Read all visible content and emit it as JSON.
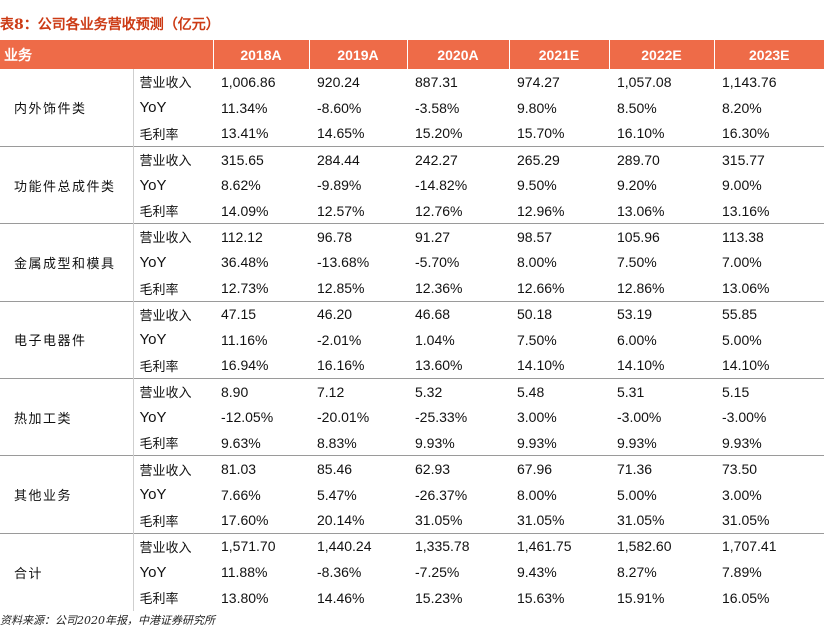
{
  "title": "表8：公司各业务营收预测（亿元）",
  "header": {
    "segment_label": "业务",
    "years": [
      "2018A",
      "2019A",
      "2020A",
      "2021E",
      "2022E",
      "2023E"
    ]
  },
  "groups": [
    {
      "name": "内外饰件类",
      "rows": [
        {
          "metric": "营业收入",
          "values": [
            "1,006.86",
            "920.24",
            "887.31",
            "974.27",
            "1,057.08",
            "1,143.76"
          ]
        },
        {
          "metric": "YoY",
          "values": [
            "11.34%",
            "-8.60%",
            "-3.58%",
            "9.80%",
            "8.50%",
            "8.20%"
          ]
        },
        {
          "metric": "毛利率",
          "values": [
            "13.41%",
            "14.65%",
            "15.20%",
            "15.70%",
            "16.10%",
            "16.30%"
          ]
        }
      ]
    },
    {
      "name": "功能件总成件类",
      "rows": [
        {
          "metric": "营业收入",
          "values": [
            "315.65",
            "284.44",
            "242.27",
            "265.29",
            "289.70",
            "315.77"
          ]
        },
        {
          "metric": "YoY",
          "values": [
            "8.62%",
            "-9.89%",
            "-14.82%",
            "9.50%",
            "9.20%",
            "9.00%"
          ]
        },
        {
          "metric": "毛利率",
          "values": [
            "14.09%",
            "12.57%",
            "12.76%",
            "12.96%",
            "13.06%",
            "13.16%"
          ]
        }
      ]
    },
    {
      "name": "金属成型和模具",
      "rows": [
        {
          "metric": "营业收入",
          "values": [
            "112.12",
            "96.78",
            "91.27",
            "98.57",
            "105.96",
            "113.38"
          ]
        },
        {
          "metric": "YoY",
          "values": [
            "36.48%",
            "-13.68%",
            "-5.70%",
            "8.00%",
            "7.50%",
            "7.00%"
          ]
        },
        {
          "metric": "毛利率",
          "values": [
            "12.73%",
            "12.85%",
            "12.36%",
            "12.66%",
            "12.86%",
            "13.06%"
          ]
        }
      ]
    },
    {
      "name": "电子电器件",
      "rows": [
        {
          "metric": "营业收入",
          "values": [
            "47.15",
            "46.20",
            "46.68",
            "50.18",
            "53.19",
            "55.85"
          ]
        },
        {
          "metric": "YoY",
          "values": [
            "11.16%",
            "-2.01%",
            "1.04%",
            "7.50%",
            "6.00%",
            "5.00%"
          ]
        },
        {
          "metric": "毛利率",
          "values": [
            "16.94%",
            "16.16%",
            "13.60%",
            "14.10%",
            "14.10%",
            "14.10%"
          ]
        }
      ]
    },
    {
      "name": "热加工类",
      "rows": [
        {
          "metric": "营业收入",
          "values": [
            "8.90",
            "7.12",
            "5.32",
            "5.48",
            "5.31",
            "5.15"
          ]
        },
        {
          "metric": "YoY",
          "values": [
            "-12.05%",
            "-20.01%",
            "-25.33%",
            "3.00%",
            "-3.00%",
            "-3.00%"
          ]
        },
        {
          "metric": "毛利率",
          "values": [
            "9.63%",
            "8.83%",
            "9.93%",
            "9.93%",
            "9.93%",
            "9.93%"
          ]
        }
      ]
    },
    {
      "name": "其他业务",
      "rows": [
        {
          "metric": "营业收入",
          "values": [
            "81.03",
            "85.46",
            "62.93",
            "67.96",
            "71.36",
            "73.50"
          ]
        },
        {
          "metric": "YoY",
          "values": [
            "7.66%",
            "5.47%",
            "-26.37%",
            "8.00%",
            "5.00%",
            "3.00%"
          ]
        },
        {
          "metric": "毛利率",
          "values": [
            "17.60%",
            "20.14%",
            "31.05%",
            "31.05%",
            "31.05%",
            "31.05%"
          ]
        }
      ]
    },
    {
      "name": "合计",
      "rows": [
        {
          "metric": "营业收入",
          "values": [
            "1,571.70",
            "1,440.24",
            "1,335.78",
            "1,461.75",
            "1,582.60",
            "1,707.41"
          ]
        },
        {
          "metric": "YoY",
          "values": [
            "11.88%",
            "-8.36%",
            "-7.25%",
            "9.43%",
            "8.27%",
            "7.89%"
          ]
        },
        {
          "metric": "毛利率",
          "values": [
            "13.80%",
            "14.46%",
            "15.23%",
            "15.63%",
            "15.91%",
            "16.05%"
          ]
        }
      ]
    }
  ],
  "footnote": "资料来源：公司2020年报，中港证券研究所",
  "colors": {
    "header_bg": "#ee6b48",
    "title": "#cc3a14"
  }
}
